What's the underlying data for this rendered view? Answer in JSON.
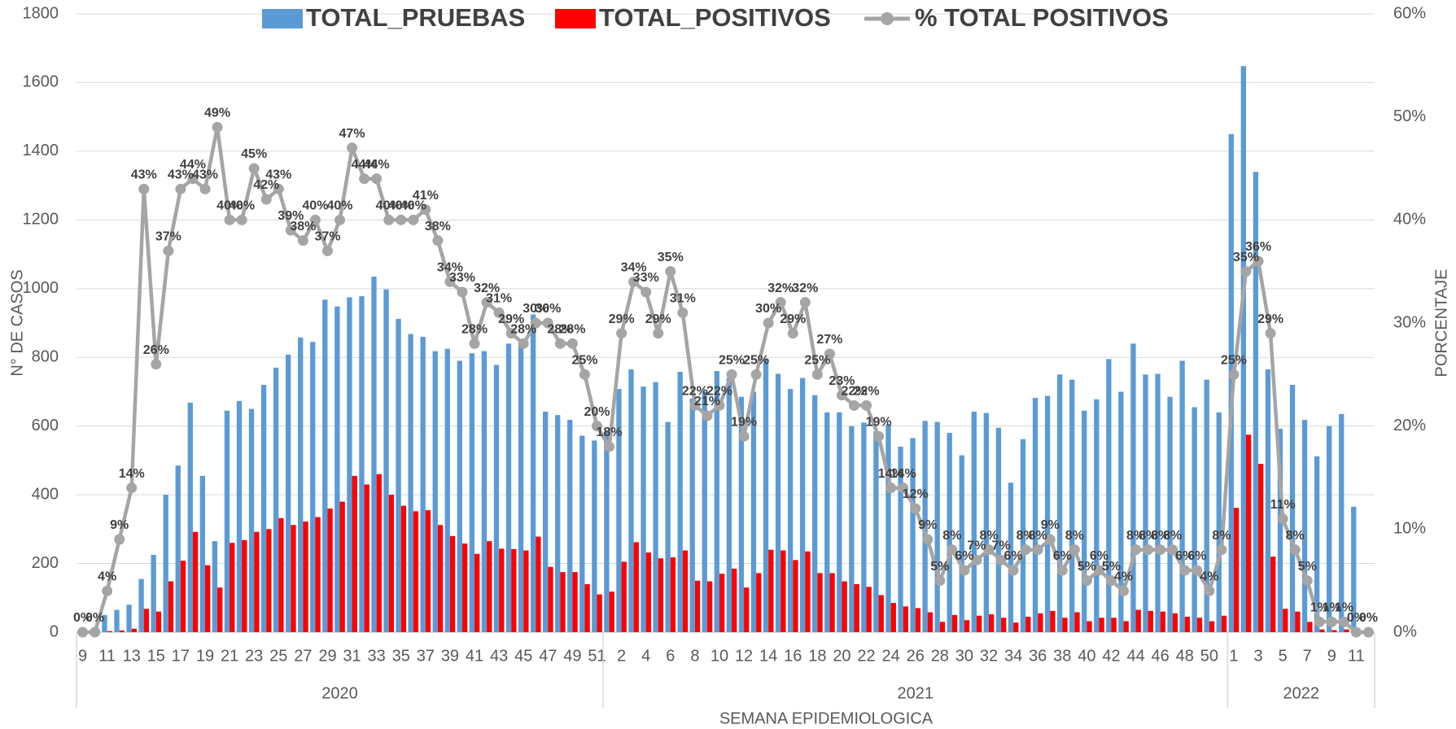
{
  "chart_data": {
    "type": "combo",
    "x_label": "SEMANA EPIDEMIOLOGICA",
    "y_label": "N° DE CASOS",
    "y2_label": "PORCENTAJE",
    "legend": "top",
    "grid": true,
    "ylim": [
      0,
      1800
    ],
    "yticks": [
      0,
      200,
      400,
      600,
      800,
      1000,
      1200,
      1400,
      1600,
      1800
    ],
    "y2lim": [
      0,
      60
    ],
    "y2ticks": [
      {
        "value": 0,
        "label": "0%"
      },
      {
        "value": 10,
        "label": "10%"
      },
      {
        "value": 20,
        "label": "20%"
      },
      {
        "value": 30,
        "label": "30%"
      },
      {
        "value": 40,
        "label": "40%"
      },
      {
        "value": 50,
        "label": "50%"
      },
      {
        "value": 60,
        "label": "60%"
      }
    ],
    "categories": [
      "9",
      null,
      "11",
      null,
      "13",
      null,
      "15",
      null,
      "17",
      null,
      "19",
      null,
      "21",
      null,
      "23",
      null,
      "25",
      null,
      "27",
      null,
      "29",
      null,
      "31",
      null,
      "33",
      null,
      "35",
      null,
      "37",
      null,
      "39",
      null,
      "41",
      null,
      "43",
      null,
      "45",
      null,
      "47",
      null,
      "49",
      null,
      "51",
      null,
      "2",
      null,
      "4",
      null,
      "6",
      null,
      "8",
      null,
      "10",
      null,
      "12",
      null,
      "14",
      null,
      "16",
      null,
      "18",
      null,
      "20",
      null,
      "22",
      null,
      "24",
      null,
      "26",
      null,
      "28",
      null,
      "30",
      null,
      "32",
      null,
      "34",
      null,
      "36",
      null,
      "38",
      null,
      "40",
      null,
      "42",
      null,
      "44",
      null,
      "46",
      null,
      "48",
      null,
      "50",
      null,
      "1",
      null,
      "3",
      null,
      "5",
      null,
      "7",
      null,
      "9",
      null,
      "11",
      null
    ],
    "groups": [
      {
        "label": "2020",
        "count": 43
      },
      {
        "label": "2021",
        "count": 51
      },
      {
        "label": "2022",
        "count": 12
      }
    ],
    "series": [
      {
        "name": "TOTAL_PRUEBAS",
        "type": "bar",
        "color": "#5b9bd5",
        "values": [
          0,
          0,
          50,
          65,
          80,
          155,
          225,
          400,
          485,
          668,
          455,
          265,
          645,
          673,
          650,
          720,
          770,
          808,
          858,
          845,
          968,
          948,
          975,
          978,
          1035,
          998,
          912,
          868,
          860,
          818,
          825,
          790,
          812,
          818,
          778,
          840,
          838,
          925,
          642,
          632,
          618,
          572,
          558,
          585,
          708,
          765,
          715,
          728,
          612,
          758,
          680,
          700,
          760,
          740,
          685,
          700,
          795,
          752,
          708,
          740,
          690,
          640,
          640,
          600,
          610,
          585,
          605,
          540,
          565,
          615,
          612,
          580,
          515,
          642,
          638,
          595,
          435,
          562,
          682,
          688,
          750,
          735,
          645,
          678,
          795,
          700,
          840,
          750,
          752,
          685,
          790,
          655,
          735,
          640,
          1450,
          1648,
          1340,
          765,
          592,
          720,
          618,
          512,
          600,
          635,
          365,
          0
        ]
      },
      {
        "name": "TOTAL_POSITIVOS",
        "type": "bar",
        "color": "#ff0000",
        "values": [
          0,
          0,
          3,
          5,
          10,
          68,
          60,
          148,
          208,
          292,
          195,
          130,
          260,
          268,
          292,
          300,
          332,
          312,
          322,
          335,
          360,
          380,
          455,
          430,
          460,
          400,
          368,
          352,
          355,
          312,
          280,
          258,
          228,
          265,
          243,
          242,
          238,
          278,
          190,
          175,
          175,
          140,
          110,
          118,
          205,
          262,
          232,
          215,
          218,
          238,
          150,
          148,
          170,
          185,
          130,
          172,
          240,
          238,
          210,
          235,
          172,
          172,
          148,
          140,
          132,
          108,
          85,
          75,
          70,
          58,
          30,
          50,
          35,
          48,
          52,
          42,
          28,
          45,
          55,
          62,
          42,
          58,
          32,
          42,
          42,
          32,
          65,
          62,
          60,
          55,
          45,
          42,
          32,
          48,
          362,
          575,
          490,
          220,
          68,
          60,
          30,
          8,
          6,
          8,
          2,
          0
        ]
      },
      {
        "name": "% TOTAL POSITIVOS",
        "type": "line",
        "axis": "y2",
        "color": "#a5a5a5",
        "values": [
          0,
          0,
          4,
          9,
          14,
          43,
          26,
          37,
          43,
          44,
          43,
          49,
          40,
          40,
          45,
          42,
          43,
          39,
          38,
          40,
          37,
          40,
          47,
          44,
          44,
          40,
          40,
          40,
          41,
          38,
          34,
          33,
          28,
          32,
          31,
          29,
          28,
          30,
          30,
          28,
          28,
          25,
          20,
          18,
          29,
          34,
          33,
          29,
          35,
          31,
          22,
          21,
          22,
          25,
          19,
          25,
          30,
          32,
          29,
          32,
          25,
          27,
          23,
          22,
          22,
          19,
          14,
          14,
          12,
          9,
          5,
          8,
          6,
          7,
          8,
          7,
          6,
          8,
          8,
          9,
          6,
          8,
          5,
          6,
          5,
          4,
          8,
          8,
          8,
          8,
          6,
          6,
          4,
          8,
          25,
          35,
          36,
          29,
          11,
          8,
          5,
          1,
          1,
          1,
          0,
          0
        ],
        "value_labels": [
          "0%",
          "0%",
          "4%",
          "9%",
          "14%",
          "43%",
          "26%",
          "37%",
          "43%",
          "44%",
          "43%",
          "49%",
          "40%",
          "40%",
          "45%",
          "42%",
          "43%",
          "39%",
          "38%",
          "40%",
          "37%",
          "40%",
          "47%",
          "44%",
          "44%",
          "40%",
          "40%",
          "40%",
          "41%",
          "38%",
          "34%",
          "33%",
          "28%",
          "32%",
          "31%",
          "29%",
          "28%",
          "30%",
          "30%",
          "28%",
          "28%",
          "25%",
          "20%",
          "18%",
          "29%",
          "34%",
          "33%",
          "29%",
          "35%",
          "31%",
          "22%",
          "21%",
          "22%",
          "25%",
          "19%",
          "25%",
          "30%",
          "32%",
          "29%",
          "32%",
          "25%",
          "27%",
          "23%",
          "22%",
          "22%",
          "19%",
          "14%",
          "14%",
          "12%",
          "9%",
          "5%",
          "8%",
          "6%",
          "7%",
          "8%",
          "7%",
          "6%",
          "8%",
          "8%",
          "9%",
          "6%",
          "8%",
          "5%",
          "6%",
          "5%",
          "4%",
          "8%",
          "8%",
          "8%",
          "8%",
          "6%",
          "6%",
          "4%",
          "8%",
          "25%",
          "35%",
          "36%",
          "29%",
          "11%",
          "8%",
          "5%",
          "1%",
          "1%",
          "1%",
          "0%",
          "0%"
        ]
      }
    ]
  }
}
